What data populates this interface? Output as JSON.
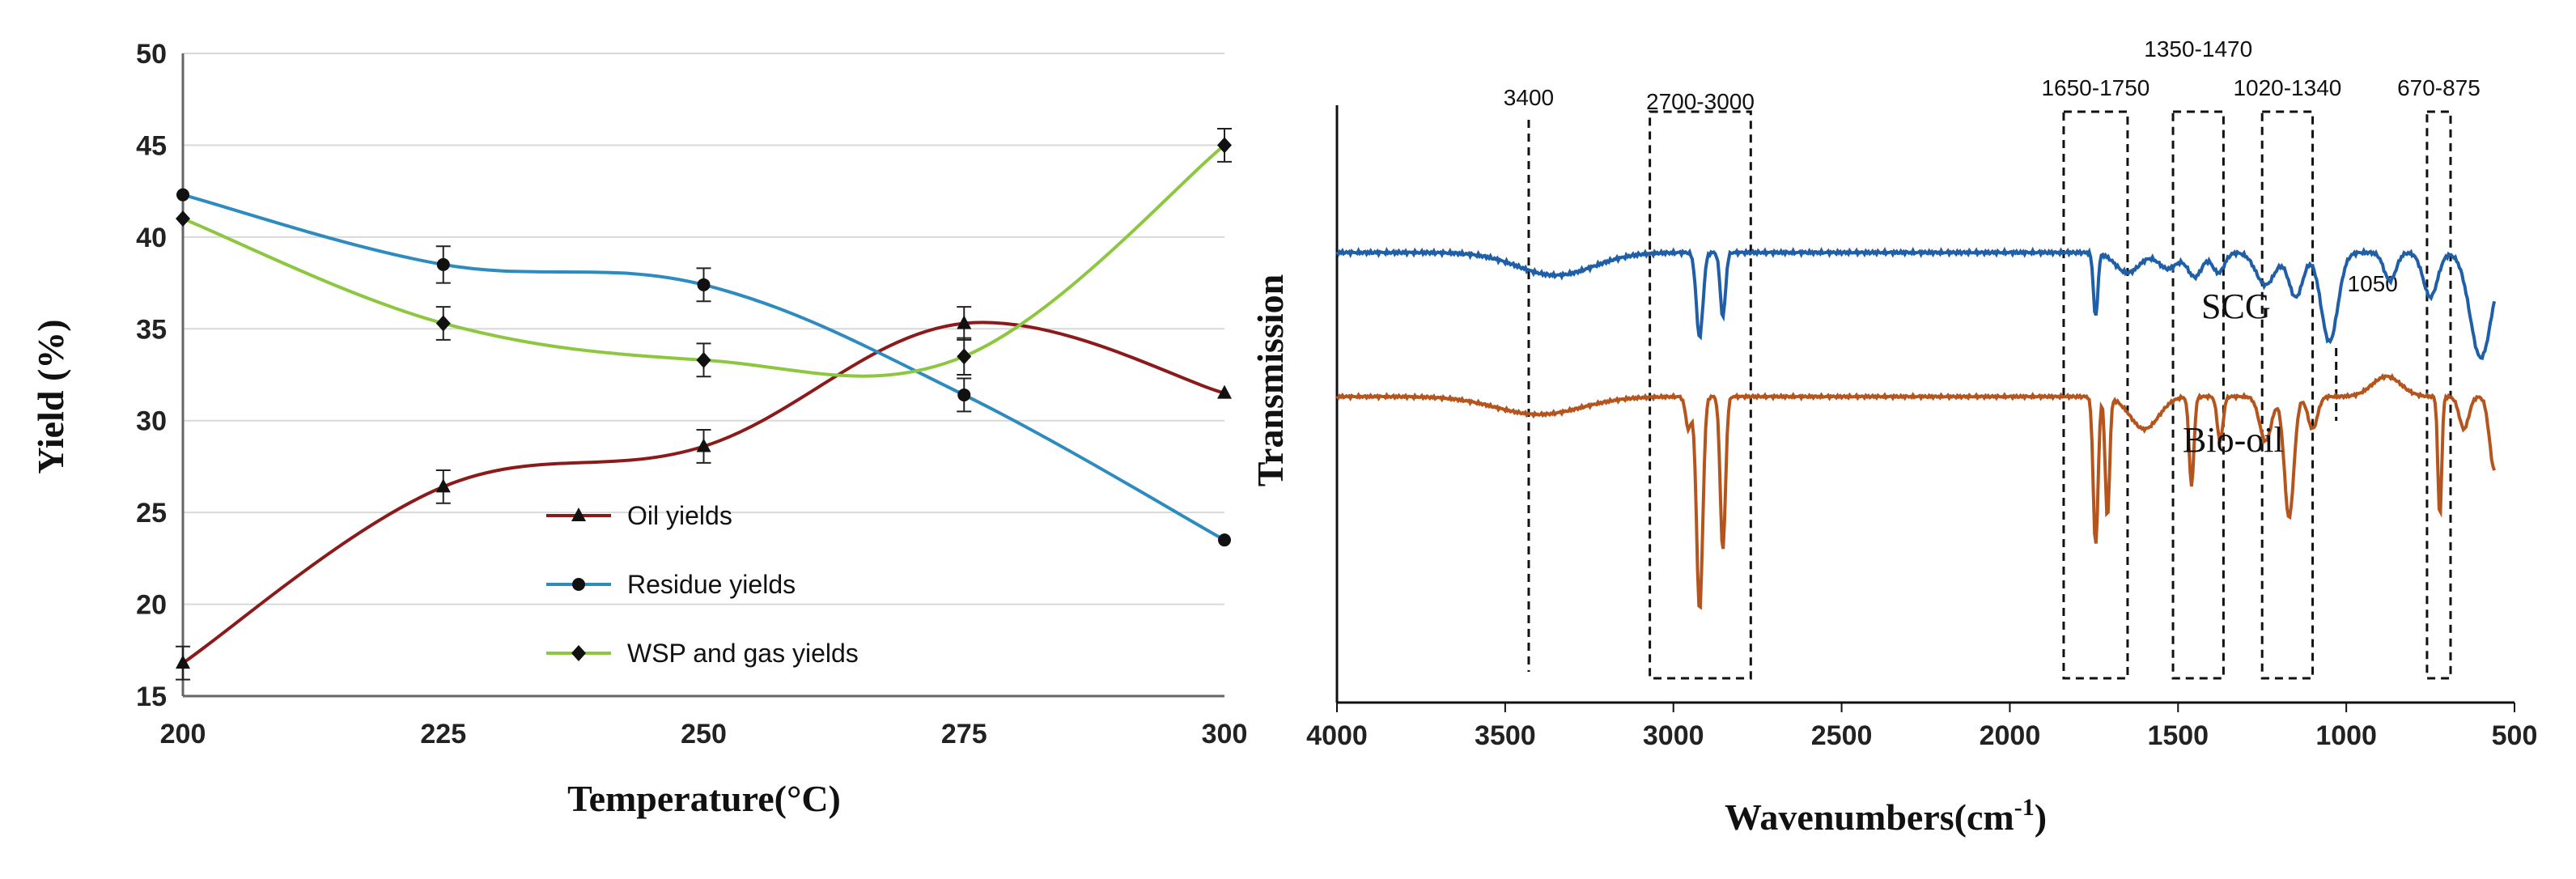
{
  "chart_data": [
    {
      "type": "line",
      "xlabel": "Temperature(°C)",
      "ylabel": "Yield (%)",
      "xlim": [
        200,
        300
      ],
      "ylim": [
        15,
        50
      ],
      "xticks": [
        200,
        225,
        250,
        275,
        300
      ],
      "yticks": [
        15,
        20,
        25,
        30,
        35,
        40,
        45,
        50
      ],
      "x": [
        200,
        225,
        250,
        275,
        300
      ],
      "series": [
        {
          "name": "Oil yields",
          "marker": "triangle",
          "color": "#8B1A1A",
          "values": [
            16.8,
            26.4,
            28.6,
            35.3,
            31.5
          ],
          "errors": [
            0.9,
            0.9,
            0.9,
            0.9,
            0
          ]
        },
        {
          "name": "Residue yields",
          "marker": "circle",
          "color": "#2E8BC0",
          "values": [
            42.3,
            38.5,
            37.4,
            31.4,
            23.5
          ],
          "errors": [
            0,
            1.0,
            0.9,
            0.9,
            0
          ]
        },
        {
          "name": "WSP and gas yields",
          "marker": "diamond",
          "color": "#8DC63F",
          "values": [
            41.0,
            35.3,
            33.3,
            33.5,
            45.0
          ],
          "errors": [
            0,
            0.9,
            0.9,
            1.0,
            0.9
          ]
        }
      ]
    },
    {
      "type": "line",
      "xlabel_main": "Wavenumbers(cm",
      "xlabel_sup": "-1",
      "xlabel_end": ")",
      "ylabel": "Transmission",
      "xlim": [
        4000,
        500
      ],
      "xticks": [
        4000,
        3500,
        3000,
        2500,
        2000,
        1500,
        1000,
        500
      ],
      "series": [
        {
          "name": "SCG",
          "color": "#1F5FA8"
        },
        {
          "name": "Bio-oil",
          "color": "#B5541C"
        }
      ],
      "annotations": [
        {
          "label": "3400",
          "x": 3430,
          "kind": "line"
        },
        {
          "label": "2700-3000",
          "range": [
            3070,
            2770
          ],
          "kind": "box"
        },
        {
          "label": "1650-1750",
          "range": [
            1840,
            1650
          ],
          "kind": "box"
        },
        {
          "label": "1350-1470",
          "range": [
            1515,
            1365
          ],
          "kind": "box"
        },
        {
          "label": "1020-1340",
          "range": [
            1250,
            1100
          ],
          "kind": "box"
        },
        {
          "label": "670-875",
          "range": [
            760,
            690
          ],
          "kind": "box"
        },
        {
          "label": "1050",
          "x": 1030,
          "kind": "line"
        }
      ]
    }
  ]
}
